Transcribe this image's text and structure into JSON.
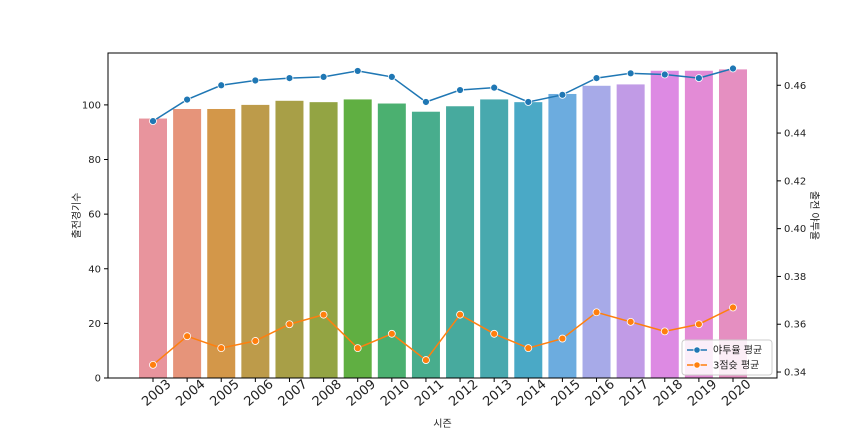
{
  "chart_data": {
    "type": "bar",
    "categories": [
      "2003",
      "2004",
      "2005",
      "2006",
      "2007",
      "2008",
      "2009",
      "2010",
      "2011",
      "2012",
      "2013",
      "2014",
      "2015",
      "2016",
      "2017",
      "2018",
      "2019",
      "2020"
    ],
    "bar_series": {
      "values": [
        95,
        98.5,
        98.5,
        100,
        101.5,
        101,
        102,
        100.5,
        97.5,
        99.5,
        102,
        101,
        104,
        107,
        107.5,
        112.5,
        112.5,
        113
      ],
      "colors": [
        "#e8949d",
        "#e6947a",
        "#d39749",
        "#bd9b4a",
        "#a89f47",
        "#93a443",
        "#60af42",
        "#4bb070",
        "#48ad8d",
        "#47aa9e",
        "#48a9ae",
        "#4aa9c6",
        "#6cacdf",
        "#a7aae8",
        "#c19be6",
        "#dd8ae3",
        "#e38bd6",
        "#e58fc1"
      ]
    },
    "line_series": [
      {
        "name": "야투율 평균",
        "color": "#1f77b4",
        "values": [
          0.445,
          0.454,
          0.46,
          0.462,
          0.463,
          0.4635,
          0.466,
          0.4635,
          0.453,
          0.458,
          0.459,
          0.453,
          0.456,
          0.463,
          0.465,
          0.4645,
          0.463,
          0.467
        ]
      },
      {
        "name": "3점슛 평균",
        "color": "#ff7f0e",
        "values": [
          0.343,
          0.355,
          0.35,
          0.353,
          0.36,
          0.364,
          0.35,
          0.356,
          0.345,
          0.364,
          0.356,
          0.35,
          0.354,
          0.365,
          0.361,
          0.357,
          0.36,
          0.367
        ]
      }
    ],
    "xlabel": "시즌",
    "ylabel_left": "출전경기수",
    "ylabel_right": "출전 야투율",
    "ylim_left": [
      0,
      119
    ],
    "ylim_right": [
      0.3375,
      0.4735
    ],
    "yticks_left": [
      "0",
      "20",
      "40",
      "60",
      "80",
      "100"
    ],
    "yticks_right": [
      "0.34",
      "0.36",
      "0.38",
      "0.40",
      "0.42",
      "0.44",
      "0.46"
    ],
    "legend_placement": "lower-right",
    "grid": false
  }
}
